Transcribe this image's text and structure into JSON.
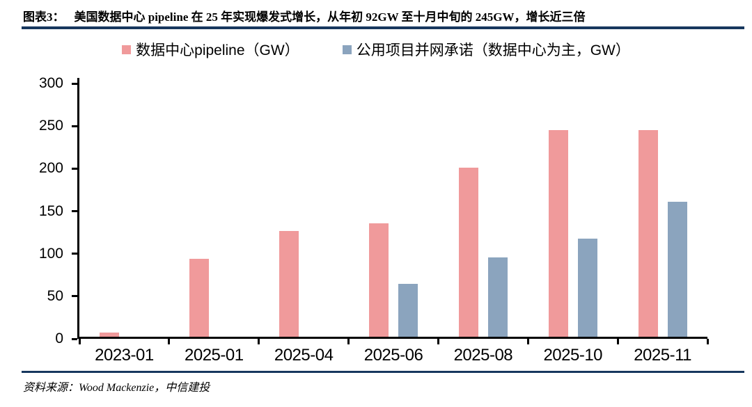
{
  "header": {
    "figure_label": "图表3：",
    "title": "美国数据中心 pipeline 在 25 年实现爆发式增长，从年初 92GW 至十月中旬的 245GW，增长近三倍"
  },
  "footer": {
    "source": "资料来源：Wood Mackenzie，中信建投"
  },
  "colors": {
    "rule": "#17375E",
    "axis": "#000000",
    "series_pink": "#F09A9B",
    "series_blue": "#8BA4BE"
  },
  "chart_data": {
    "type": "bar",
    "title": "",
    "xlabel": "",
    "ylabel": "",
    "categories": [
      "2023-01",
      "2025-01",
      "2025-04",
      "2025-06",
      "2025-08",
      "2025-10",
      "2025-11"
    ],
    "series": [
      {
        "name": "数据中心pipeline（GW）",
        "color": "#F09A9B",
        "values": [
          5,
          92,
          125,
          134,
          200,
          245,
          245
        ]
      },
      {
        "name": "公用项目并网承诺（数据中心为主，GW）",
        "color": "#8BA4BE",
        "values": [
          0,
          0,
          0,
          63,
          94,
          116,
          160
        ]
      }
    ],
    "ylim": [
      0,
      300
    ],
    "y_ticks": [
      0,
      50,
      100,
      150,
      200,
      250,
      300
    ],
    "grid": false,
    "legend_position": "top-center"
  }
}
